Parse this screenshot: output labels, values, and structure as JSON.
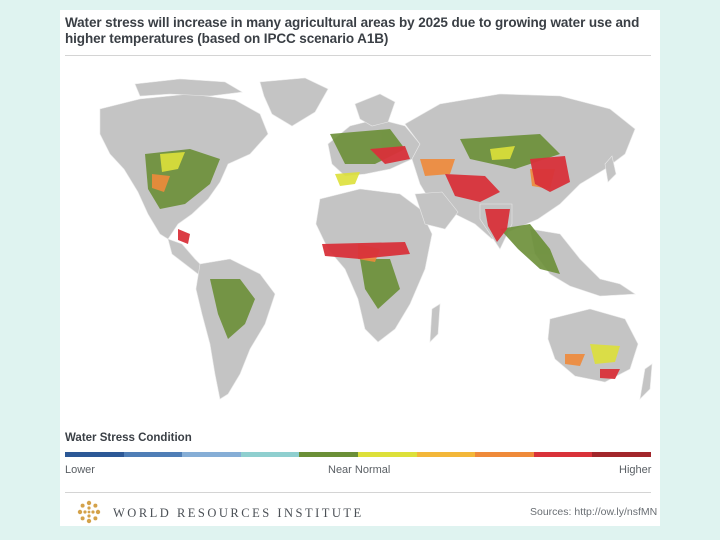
{
  "title": "Water stress will increase in many agricultural areas by 2025 due to growing water use and higher temperatures (based on IPCC scenario A1B)",
  "legend": {
    "title": "Water Stress Condition",
    "low_label": "Lower",
    "mid_label": "Near Normal",
    "high_label": "Higher",
    "colors": [
      "#2c5896",
      "#4f7eb6",
      "#86aed6",
      "#8fcfcf",
      "#6b8f37",
      "#dde03a",
      "#f3b73a",
      "#ef8a3a",
      "#d9323a",
      "#a2262b"
    ]
  },
  "map_colors": {
    "land": "#c4c4c4",
    "ocean": "#ffffff",
    "lower": "#6b8f37",
    "moderate": "#dde03a",
    "high": "#ef8a3a",
    "highest": "#d9323a"
  },
  "footer": {
    "organization": "WORLD RESOURCES INSTITUTE",
    "source": "Sources: http://ow.ly/nsfMN"
  }
}
